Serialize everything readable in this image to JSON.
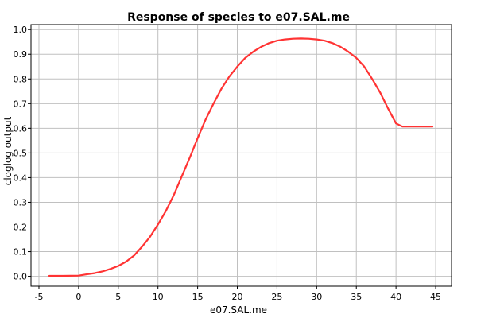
{
  "chart_data": {
    "type": "line",
    "title": "Response of species to e07.SAL.me",
    "xlabel": "e07.SAL.me",
    "ylabel": "cloglog output",
    "xlim": [
      -6,
      47
    ],
    "ylim": [
      -0.04,
      1.02
    ],
    "xticks": [
      -5,
      0,
      5,
      10,
      15,
      20,
      25,
      30,
      35,
      40,
      45
    ],
    "xtick_labels": [
      "-5",
      "0",
      "5",
      "10",
      "15",
      "20",
      "25",
      "30",
      "35",
      "40",
      "45"
    ],
    "yticks": [
      0.0,
      0.1,
      0.2,
      0.3,
      0.4,
      0.5,
      0.6,
      0.7,
      0.8,
      0.9,
      1.0
    ],
    "ytick_labels": [
      "0.0",
      "0.1",
      "0.2",
      "0.3",
      "0.4",
      "0.5",
      "0.6",
      "0.7",
      "0.8",
      "0.9",
      "1.0"
    ],
    "grid": true,
    "series": [
      {
        "color": "#ff3333",
        "x": [
          -3.7,
          -2,
          0,
          1,
          2,
          3,
          4,
          5,
          6,
          7,
          8,
          9,
          10,
          11,
          12,
          13,
          14,
          15,
          16,
          17,
          18,
          19,
          20,
          21,
          22,
          23,
          24,
          25,
          26,
          27,
          28,
          29,
          30,
          31,
          32,
          33,
          34,
          35,
          36,
          37,
          38,
          39,
          40,
          40.8,
          42,
          44.6
        ],
        "y": [
          0.002,
          0.002,
          0.003,
          0.008,
          0.013,
          0.02,
          0.03,
          0.042,
          0.06,
          0.085,
          0.12,
          0.16,
          0.21,
          0.265,
          0.33,
          0.405,
          0.48,
          0.56,
          0.635,
          0.7,
          0.76,
          0.81,
          0.85,
          0.885,
          0.91,
          0.93,
          0.945,
          0.955,
          0.96,
          0.963,
          0.964,
          0.963,
          0.96,
          0.955,
          0.945,
          0.93,
          0.91,
          0.885,
          0.85,
          0.8,
          0.745,
          0.68,
          0.62,
          0.607,
          0.607,
          0.607
        ]
      }
    ]
  }
}
